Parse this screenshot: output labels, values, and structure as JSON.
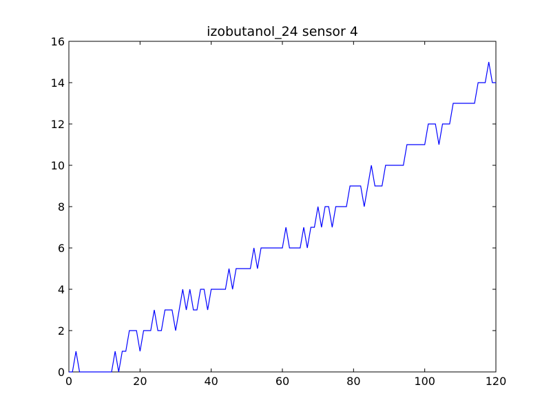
{
  "chart_data": {
    "type": "line",
    "title": "izobutanol_24 sensor 4",
    "xlabel": "",
    "ylabel": "",
    "xlim": [
      0,
      120
    ],
    "ylim": [
      0,
      16
    ],
    "x_ticks": [
      0,
      20,
      40,
      60,
      80,
      100,
      120
    ],
    "y_ticks": [
      0,
      2,
      4,
      6,
      8,
      10,
      12,
      14,
      16
    ],
    "grid": false,
    "legend": "none",
    "series": [
      {
        "color": "#0000ff",
        "x": [
          0,
          1,
          2,
          3,
          4,
          5,
          6,
          7,
          8,
          9,
          10,
          11,
          12,
          13,
          14,
          15,
          16,
          17,
          18,
          19,
          20,
          21,
          22,
          23,
          24,
          25,
          26,
          27,
          28,
          29,
          30,
          31,
          32,
          33,
          34,
          35,
          36,
          37,
          38,
          39,
          40,
          41,
          42,
          43,
          44,
          45,
          46,
          47,
          48,
          49,
          50,
          51,
          52,
          53,
          54,
          55,
          56,
          57,
          58,
          59,
          60,
          61,
          62,
          63,
          64,
          65,
          66,
          67,
          68,
          69,
          70,
          71,
          72,
          73,
          74,
          75,
          76,
          77,
          78,
          79,
          80,
          81,
          82,
          83,
          84,
          85,
          86,
          87,
          88,
          89,
          90,
          91,
          92,
          93,
          94,
          95,
          96,
          97,
          98,
          99,
          100,
          101,
          102,
          103,
          104,
          105,
          106,
          107,
          108,
          109,
          110,
          111,
          112,
          113,
          114,
          115,
          116,
          117,
          118,
          119,
          120
        ],
        "y": [
          0,
          0,
          1,
          0,
          0,
          0,
          0,
          0,
          0,
          0,
          0,
          0,
          0,
          1,
          0,
          1,
          1,
          2,
          2,
          2,
          1,
          2,
          2,
          2,
          3,
          2,
          2,
          3,
          3,
          3,
          2,
          3,
          4,
          3,
          4,
          3,
          3,
          4,
          4,
          3,
          4,
          4,
          4,
          4,
          4,
          5,
          4,
          5,
          5,
          5,
          5,
          5,
          6,
          5,
          6,
          6,
          6,
          6,
          6,
          6,
          6,
          7,
          6,
          6,
          6,
          6,
          7,
          6,
          7,
          7,
          8,
          7,
          8,
          8,
          7,
          8,
          8,
          8,
          8,
          9,
          9,
          9,
          9,
          8,
          9,
          10,
          9,
          9,
          9,
          10,
          10,
          10,
          10,
          10,
          10,
          11,
          11,
          11,
          11,
          11,
          11,
          12,
          12,
          12,
          11,
          12,
          12,
          12,
          13,
          13,
          13,
          13,
          13,
          13,
          13,
          14,
          14,
          14,
          15,
          14,
          14
        ]
      }
    ]
  }
}
